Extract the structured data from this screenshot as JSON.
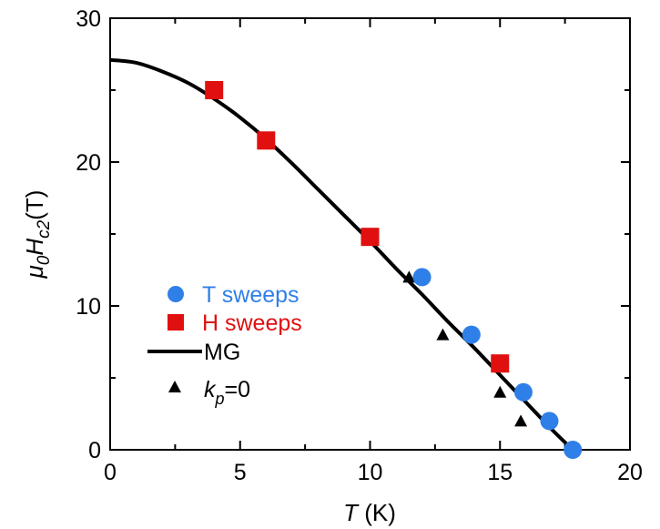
{
  "chart_data": {
    "type": "scatter",
    "xlim": [
      0,
      20
    ],
    "ylim": [
      0,
      30
    ],
    "x_major_ticks": [
      0,
      5,
      10,
      15,
      20
    ],
    "x_minor_ticks": [
      2.5,
      7.5,
      12.5,
      17.5
    ],
    "y_major_ticks": [
      0,
      10,
      20,
      30
    ],
    "y_minor_ticks": [
      5,
      15,
      25
    ],
    "grid": false,
    "legend_position": "left",
    "xlabel": {
      "symbol": "T",
      "unit": " (K)"
    },
    "ylabel": {
      "mu": "μ",
      "mu_sub": "0",
      "H": "H",
      "H_sub": "c2",
      "unit": "(T)"
    },
    "series": [
      {
        "name": "T sweeps",
        "marker": "circle",
        "color": "#2f7fe8",
        "points": [
          [
            12.0,
            12.0
          ],
          [
            13.9,
            8.0
          ],
          [
            15.9,
            4.0
          ],
          [
            16.9,
            2.0
          ],
          [
            17.8,
            0.0
          ]
        ]
      },
      {
        "name": "H sweeps",
        "marker": "square",
        "color": "#e01010",
        "points": [
          [
            4.0,
            25.0
          ],
          [
            6.0,
            21.5
          ],
          [
            10.0,
            14.8
          ],
          [
            15.0,
            6.0
          ]
        ]
      },
      {
        "name": "MG",
        "marker": "line",
        "color": "#000000",
        "points": [
          [
            0,
            27.1
          ],
          [
            1,
            26.9
          ],
          [
            2,
            26.3
          ],
          [
            3,
            25.5
          ],
          [
            4,
            24.4
          ],
          [
            5,
            23.1
          ],
          [
            6,
            21.6
          ],
          [
            7,
            19.9
          ],
          [
            8,
            18.1
          ],
          [
            9,
            16.3
          ],
          [
            10,
            14.5
          ],
          [
            11,
            12.6
          ],
          [
            12,
            10.8
          ],
          [
            13,
            8.9
          ],
          [
            14,
            7.1
          ],
          [
            15,
            5.2
          ],
          [
            16,
            3.3
          ],
          [
            17,
            1.4
          ],
          [
            17.8,
            0.0
          ]
        ]
      },
      {
        "name": "k_p=0",
        "label": {
          "k": "k",
          "sub": "p",
          "rest": "=0"
        },
        "marker": "triangle",
        "color": "#000000",
        "points": [
          [
            11.5,
            12.0
          ],
          [
            12.8,
            8.0
          ],
          [
            15.0,
            4.0
          ],
          [
            15.8,
            2.0
          ]
        ]
      }
    ]
  }
}
